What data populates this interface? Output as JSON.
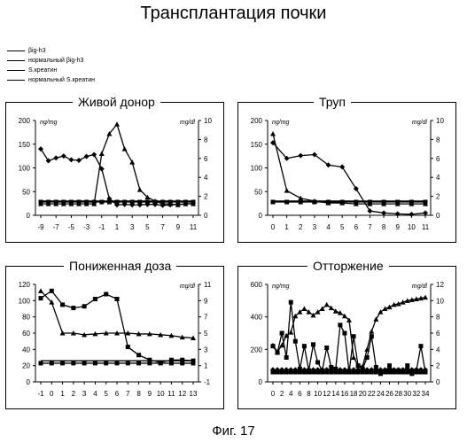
{
  "title": "Трансплантация почки",
  "caption": "Фиг. 17",
  "legend": [
    "βig-h3",
    "нормальный βig-h3",
    "S.креатин",
    "нормальный S.креатин"
  ],
  "chart_data": [
    {
      "type": "line",
      "title": "Живой донор",
      "left_unit": "ng/mg",
      "right_unit": "mg/dl",
      "x": [
        -9,
        -8,
        -7,
        -6,
        -5,
        -4,
        -3,
        -2,
        -1,
        0,
        1,
        2,
        3,
        4,
        5,
        6,
        7,
        8,
        9,
        10,
        11
      ],
      "xticks": [
        -9,
        -7,
        -5,
        -3,
        -1,
        1,
        3,
        5,
        7,
        9,
        11
      ],
      "ylim_left": [
        0,
        200
      ],
      "yticks_left": [
        0,
        50,
        100,
        150,
        200
      ],
      "ylim_right": [
        0,
        10
      ],
      "yticks_right": [
        0,
        2,
        4,
        6,
        8,
        10
      ],
      "series": [
        {
          "name": "βig-h3",
          "axis": "left",
          "marker": "diamond",
          "values": [
            140,
            115,
            121,
            125,
            117,
            116,
            124,
            128,
            98,
            35,
            22,
            23,
            22,
            22,
            23,
            23,
            21,
            22,
            23,
            24,
            25
          ]
        },
        {
          "name": "нормальный βig-h3",
          "axis": "left",
          "marker": "none",
          "values": [
            30,
            30,
            30,
            30,
            30,
            30,
            30,
            30,
            30,
            30,
            30,
            30,
            30,
            30,
            30,
            30,
            30,
            30,
            30,
            30,
            30
          ]
        },
        {
          "name": "S.креатин",
          "axis": "right",
          "marker": "triangle",
          "values": [
            1.2,
            1.2,
            1.2,
            1.2,
            1.2,
            1.2,
            1.2,
            1.2,
            6.5,
            8.6,
            9.6,
            7.0,
            5.6,
            2.7,
            1.9,
            1.5,
            1.2,
            1.2,
            1.1,
            1.2,
            1.2
          ]
        },
        {
          "name": "нормальный S.креатин",
          "axis": "right",
          "marker": "square",
          "values": [
            1.4,
            1.4,
            1.4,
            1.4,
            1.4,
            1.4,
            1.4,
            1.4,
            1.4,
            1.4,
            1.4,
            1.4,
            1.4,
            1.4,
            1.4,
            1.4,
            1.4,
            1.4,
            1.4,
            1.4,
            1.4
          ]
        }
      ]
    },
    {
      "type": "line",
      "title": "Труп",
      "left_unit": "ng/mg",
      "right_unit": "mg/dl",
      "x": [
        0,
        1,
        2,
        3,
        4,
        5,
        6,
        7,
        8,
        9,
        10,
        11
      ],
      "xticks": [
        0,
        1,
        2,
        3,
        4,
        5,
        6,
        7,
        8,
        9,
        10,
        11
      ],
      "ylim_left": [
        0,
        200
      ],
      "yticks_left": [
        0,
        50,
        100,
        150,
        200
      ],
      "ylim_right": [
        0,
        10
      ],
      "yticks_right": [
        0,
        2,
        4,
        6,
        8,
        10
      ],
      "series": [
        {
          "name": "βig-h3",
          "axis": "left",
          "marker": "diamond",
          "values": [
            153,
            120,
            126,
            128,
            106,
            102,
            56,
            9,
            5,
            3,
            2,
            5
          ]
        },
        {
          "name": "нормальный βig-h3",
          "axis": "left",
          "marker": "none",
          "values": [
            30,
            30,
            30,
            30,
            30,
            30,
            30,
            30,
            30,
            30,
            30,
            30
          ]
        },
        {
          "name": "S.креатин",
          "axis": "right",
          "marker": "triangle",
          "values": [
            8.6,
            2.6,
            1.8,
            1.5,
            1.3,
            1.3,
            1.2,
            1.2,
            1.2,
            1.2,
            1.2,
            1.2
          ]
        },
        {
          "name": "нормальный S.креатин",
          "axis": "right",
          "marker": "square",
          "values": [
            1.4,
            1.4,
            1.4,
            1.4,
            1.4,
            1.4,
            1.4,
            1.4,
            1.4,
            1.4,
            1.4,
            1.4
          ]
        }
      ]
    },
    {
      "type": "line",
      "title": "Пониженная доза",
      "left_unit": "",
      "right_unit": "mg/dl",
      "x": [
        -1,
        0,
        1,
        2,
        3,
        4,
        5,
        6,
        7,
        8,
        9,
        10,
        11,
        12,
        13
      ],
      "xticks": [
        -1,
        0,
        1,
        2,
        3,
        4,
        5,
        6,
        7,
        8,
        9,
        10,
        11,
        12,
        13
      ],
      "ylim_left": [
        0,
        120
      ],
      "yticks_left": [
        0,
        20,
        40,
        60,
        80,
        100,
        120
      ],
      "ylim_right": [
        -1,
        11
      ],
      "yticks_right": [
        -1,
        1,
        3,
        5,
        7,
        9,
        11
      ],
      "series": [
        {
          "name": "βig-h3",
          "axis": "left",
          "marker": "square",
          "values": [
            103,
            112,
            95,
            91,
            93,
            102,
            108,
            102,
            43,
            33,
            27,
            24,
            27,
            27,
            26
          ]
        },
        {
          "name": "нормальный βig-h3",
          "axis": "left",
          "marker": "square",
          "values": [
            23,
            23,
            23,
            23,
            23,
            23,
            23,
            23,
            23,
            23,
            23,
            23,
            23,
            23,
            23
          ]
        },
        {
          "name": "S.креатин",
          "axis": "right",
          "marker": "triangle",
          "values": [
            10.2,
            8.8,
            5.0,
            5.0,
            4.8,
            4.9,
            5.0,
            5.0,
            5.0,
            4.9,
            4.9,
            4.8,
            4.7,
            4.5,
            4.4
          ]
        },
        {
          "name": "нормальный S.креатин",
          "axis": "right",
          "marker": "none",
          "values": [
            1.6,
            1.6,
            1.6,
            1.6,
            1.6,
            1.6,
            1.6,
            1.6,
            1.6,
            1.6,
            1.6,
            1.6,
            1.6,
            1.6,
            1.6
          ]
        }
      ]
    },
    {
      "type": "line",
      "title": "Отторжение",
      "left_unit": "ng/mg",
      "right_unit": "mg/dl",
      "x": [
        0,
        1,
        2,
        3,
        4,
        5,
        6,
        7,
        8,
        9,
        10,
        11,
        12,
        13,
        14,
        15,
        16,
        17,
        18,
        19,
        20,
        21,
        22,
        23,
        24,
        25,
        26,
        27,
        28,
        29,
        30,
        31,
        32,
        33,
        34
      ],
      "xticks": [
        0,
        2,
        4,
        6,
        8,
        10,
        12,
        14,
        16,
        18,
        20,
        22,
        24,
        26,
        28,
        30,
        32,
        34
      ],
      "ylim_left": [
        0,
        600
      ],
      "yticks_left": [
        0,
        200,
        400,
        600
      ],
      "ylim_right": [
        0,
        12
      ],
      "yticks_right": [
        0,
        2,
        4,
        6,
        8,
        10,
        12
      ],
      "series": [
        {
          "name": "βig-h3",
          "axis": "left",
          "marker": "square",
          "values": [
            220,
            180,
            300,
            150,
            490,
            250,
            80,
            220,
            70,
            230,
            120,
            70,
            210,
            90,
            80,
            350,
            300,
            60,
            280,
            100,
            80,
            150,
            280,
            90,
            50,
            60,
            100,
            60,
            70,
            60,
            100,
            50,
            70,
            220,
            60
          ]
        },
        {
          "name": "нормальный βig-h3",
          "axis": "left",
          "marker": "diamond",
          "values": [
            75,
            75,
            75,
            75,
            75,
            75,
            75,
            75,
            75,
            75,
            75,
            75,
            75,
            75,
            75,
            75,
            75,
            75,
            75,
            75,
            75,
            75,
            75,
            75,
            75,
            75,
            75,
            75,
            75,
            75,
            75,
            75,
            75,
            75,
            75
          ]
        },
        {
          "name": "S.креатин",
          "axis": "right",
          "marker": "triangle",
          "values": [
            4.5,
            3.7,
            4.5,
            5.7,
            6.1,
            8.1,
            8.6,
            9.0,
            8.6,
            8.2,
            8.6,
            9.0,
            9.5,
            9.1,
            8.7,
            8.5,
            8.1,
            7.6,
            3.0,
            2.0,
            1.9,
            4.0,
            6.2,
            7.7,
            8.6,
            9.0,
            9.2,
            9.5,
            9.6,
            9.8,
            10.0,
            10.1,
            10.2,
            10.3,
            10.4
          ]
        },
        {
          "name": "нормальный S.креатин",
          "axis": "right",
          "marker": "square",
          "values": [
            1.2,
            1.2,
            1.2,
            1.2,
            1.2,
            1.2,
            1.2,
            1.2,
            1.2,
            1.2,
            1.2,
            1.2,
            1.2,
            1.2,
            1.2,
            1.2,
            1.2,
            1.2,
            1.2,
            1.2,
            1.2,
            1.2,
            1.2,
            1.2,
            1.2,
            1.2,
            1.2,
            1.2,
            1.2,
            1.2,
            1.2,
            1.2,
            1.2,
            1.2,
            1.2
          ]
        }
      ]
    }
  ]
}
